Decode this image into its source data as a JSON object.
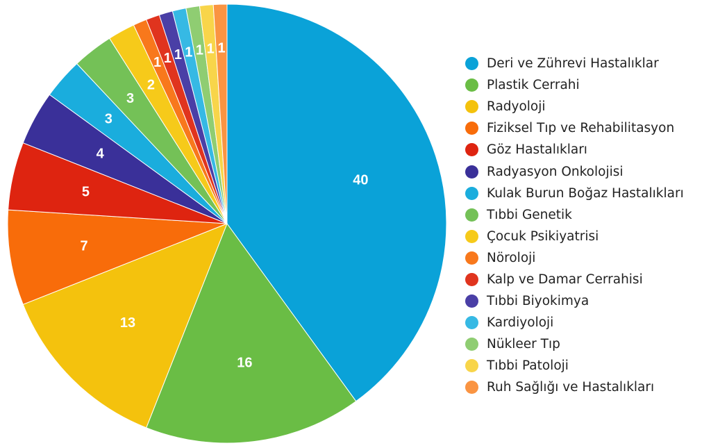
{
  "chart_data": {
    "type": "pie",
    "title": "",
    "start_angle_deg": 0,
    "direction": "clockwise",
    "legend_position": "right",
    "slices": [
      {
        "label": "Deri ve Zührevi Hastalıklar",
        "value": 40,
        "color": "#0aa2d8"
      },
      {
        "label": "Plastik Cerrahi",
        "value": 16,
        "color": "#6abd45"
      },
      {
        "label": "Radyoloji",
        "value": 13,
        "color": "#f4c20d"
      },
      {
        "label": "Fiziksel Tıp ve Rehabilitasyon",
        "value": 7,
        "color": "#f86c0a"
      },
      {
        "label": "Göz Hastalıkları",
        "value": 5,
        "color": "#de2410"
      },
      {
        "label": "Radyasyon Onkolojisi",
        "value": 4,
        "color": "#3a3099"
      },
      {
        "label": "Kulak Burun Boğaz Hastalıkları",
        "value": 3,
        "color": "#1aaddd"
      },
      {
        "label": "Tıbbi Genetik",
        "value": 3,
        "color": "#74c157"
      },
      {
        "label": "Çocuk Psikiyatrisi",
        "value": 2,
        "color": "#f6ca1a"
      },
      {
        "label": "Nöroloji",
        "value": 1,
        "color": "#f8781c"
      },
      {
        "label": "Kalp ve Damar Cerrahisi",
        "value": 1,
        "color": "#e0341e"
      },
      {
        "label": "Tıbbi Biyokimya",
        "value": 1,
        "color": "#4a3fa6"
      },
      {
        "label": "Kardiyoloji",
        "value": 1,
        "color": "#36b9e4"
      },
      {
        "label": "Nükleer Tıp",
        "value": 1,
        "color": "#8fcd72"
      },
      {
        "label": "Tıbbi Patoloji",
        "value": 1,
        "color": "#f8d54a"
      },
      {
        "label": "Ruh Sağlığı ve Hastalıkları",
        "value": 1,
        "color": "#fa9442"
      }
    ]
  }
}
